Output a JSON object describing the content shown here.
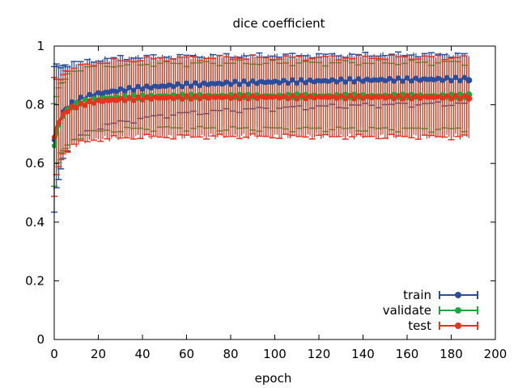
{
  "chart_data": {
    "type": "line",
    "title": "dice coefficient",
    "xlabel": "epoch",
    "ylabel": "",
    "xlim": [
      0,
      200
    ],
    "ylim": [
      0,
      1
    ],
    "xticks": [
      0,
      20,
      40,
      60,
      80,
      100,
      120,
      140,
      160,
      180,
      200
    ],
    "yticks": [
      0,
      0.2,
      0.4,
      0.6,
      0.8,
      1
    ],
    "ytick_labels": [
      "0",
      "0.2",
      "0.4",
      "0.6",
      "0.8",
      "1"
    ],
    "legend_position": "bottom-right",
    "x_range": [
      0,
      188
    ],
    "series": [
      {
        "name": "train",
        "color": "#2a4d9c",
        "x": [
          0,
          1,
          2,
          3,
          5,
          8,
          12,
          16,
          20,
          30,
          40,
          50,
          60,
          80,
          100,
          120,
          140,
          160,
          188
        ],
        "mean": [
          0.68,
          0.72,
          0.74,
          0.76,
          0.785,
          0.805,
          0.82,
          0.83,
          0.838,
          0.85,
          0.858,
          0.864,
          0.868,
          0.874,
          0.878,
          0.881,
          0.884,
          0.886,
          0.888
        ],
        "std": [
          0.25,
          0.21,
          0.19,
          0.17,
          0.15,
          0.135,
          0.125,
          0.12,
          0.115,
          0.11,
          0.105,
          0.1,
          0.097,
          0.093,
          0.09,
          0.088,
          0.086,
          0.085,
          0.084
        ]
      },
      {
        "name": "validate",
        "color": "#1aaa3a",
        "x": [
          0,
          1,
          2,
          3,
          5,
          8,
          12,
          16,
          20,
          30,
          40,
          50,
          60,
          80,
          100,
          120,
          140,
          160,
          188
        ],
        "mean": [
          0.66,
          0.7,
          0.73,
          0.75,
          0.775,
          0.795,
          0.808,
          0.815,
          0.82,
          0.825,
          0.828,
          0.83,
          0.83,
          0.83,
          0.83,
          0.83,
          0.83,
          0.83,
          0.83
        ],
        "std": [
          0.14,
          0.13,
          0.125,
          0.12,
          0.12,
          0.118,
          0.116,
          0.114,
          0.112,
          0.11,
          0.11,
          0.11,
          0.11,
          0.112,
          0.112,
          0.112,
          0.113,
          0.113,
          0.114
        ]
      },
      {
        "name": "test",
        "color": "#e8321e",
        "x": [
          0,
          1,
          2,
          3,
          5,
          8,
          12,
          16,
          20,
          30,
          40,
          50,
          60,
          80,
          100,
          120,
          140,
          160,
          188
        ],
        "mean": [
          0.69,
          0.72,
          0.74,
          0.755,
          0.775,
          0.79,
          0.8,
          0.808,
          0.812,
          0.818,
          0.822,
          0.824,
          0.825,
          0.826,
          0.826,
          0.826,
          0.826,
          0.826,
          0.826
        ],
        "std": [
          0.2,
          0.16,
          0.15,
          0.14,
          0.135,
          0.132,
          0.13,
          0.13,
          0.13,
          0.131,
          0.132,
          0.133,
          0.134,
          0.134,
          0.134,
          0.134,
          0.135,
          0.135,
          0.136
        ]
      }
    ]
  }
}
